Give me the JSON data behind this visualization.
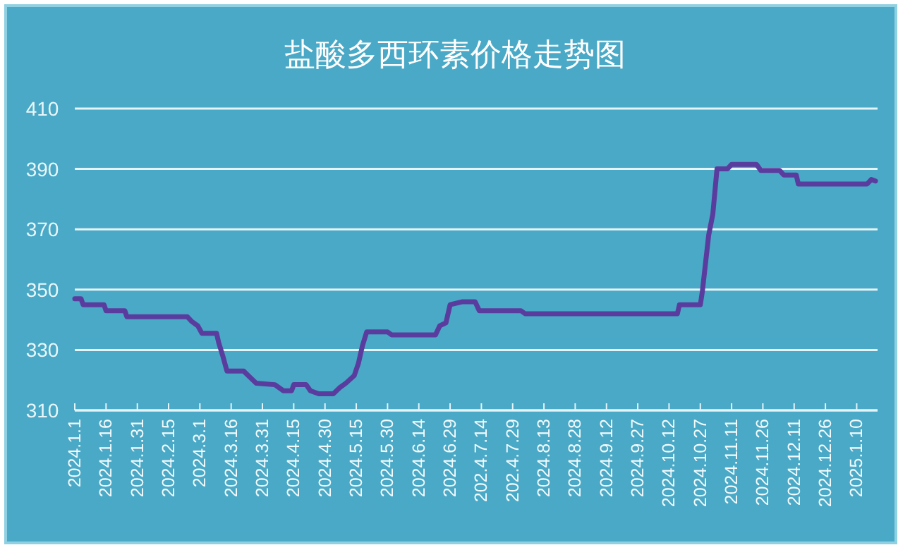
{
  "chart_data": {
    "type": "line",
    "title": "盐酸多西环素价格走势图",
    "series": [
      {
        "color": "#5a3c9e",
        "x": [
          "2024-01-01",
          "2024-01-04",
          "2024-01-05",
          "2024-01-15",
          "2024-01-16",
          "2024-01-25",
          "2024-01-26",
          "2024-02-24",
          "2024-02-26",
          "2024-02-29",
          "2024-03-02",
          "2024-03-09",
          "2024-03-10",
          "2024-03-12",
          "2024-03-14",
          "2024-03-22",
          "2024-03-25",
          "2024-03-28",
          "2024-04-06",
          "2024-04-10",
          "2024-04-14",
          "2024-04-15",
          "2024-04-21",
          "2024-04-23",
          "2024-04-27",
          "2024-05-04",
          "2024-05-07",
          "2024-05-10",
          "2024-05-14",
          "2024-05-16",
          "2024-05-18",
          "2024-05-20",
          "2024-05-30",
          "2024-06-01",
          "2024-06-22",
          "2024-06-24",
          "2024-06-27",
          "2024-06-29",
          "2024-07-05",
          "2024-07-11",
          "2024-07-13",
          "2024-08-02",
          "2024-08-04",
          "2024-10-16",
          "2024-10-17",
          "2024-10-27",
          "2024-10-28",
          "2024-10-31",
          "2024-11-02",
          "2024-11-04",
          "2024-11-09",
          "2024-11-11",
          "2024-11-23",
          "2024-11-25",
          "2024-12-04",
          "2024-12-06",
          "2024-12-12",
          "2024-12-13",
          "2025-01-15",
          "2025-01-17",
          "2025-01-19"
        ],
        "values": [
          347,
          347,
          345,
          345,
          343,
          343,
          341,
          341,
          339.5,
          338,
          335.5,
          335.5,
          332.5,
          328,
          323,
          323,
          321,
          319,
          318.5,
          316.5,
          316.5,
          318.5,
          318.5,
          316.5,
          315.5,
          315.5,
          317.5,
          319,
          321.5,
          325.5,
          331.5,
          336,
          336,
          335,
          335,
          338,
          339,
          345,
          346,
          346,
          343,
          343,
          342,
          342,
          345,
          345,
          349.5,
          368,
          375,
          390,
          390,
          391.5,
          391.5,
          389.5,
          389.5,
          388,
          388,
          385,
          385,
          386.5,
          386
        ]
      }
    ],
    "ylim": [
      310,
      410
    ],
    "yticks": [
      310,
      330,
      350,
      370,
      390,
      410
    ],
    "xlim": [
      "2024-01-01",
      "2025-01-20"
    ],
    "xticks": [
      {
        "value": "2024-01-01",
        "label": "2024.1.1"
      },
      {
        "value": "2024-01-16",
        "label": "2024.1.16"
      },
      {
        "value": "2024-01-31",
        "label": "2024.1.31"
      },
      {
        "value": "2024-02-15",
        "label": "2024.2.15"
      },
      {
        "value": "2024-03-01",
        "label": "2024.3.1"
      },
      {
        "value": "2024-03-16",
        "label": "2024.3.16"
      },
      {
        "value": "2024-03-31",
        "label": "2024.3.31"
      },
      {
        "value": "2024-04-15",
        "label": "2024.4.15"
      },
      {
        "value": "2024-04-30",
        "label": "2024.4.30"
      },
      {
        "value": "2024-05-15",
        "label": "2024.5.15"
      },
      {
        "value": "2024-05-30",
        "label": "2024.5.30"
      },
      {
        "value": "2024-06-14",
        "label": "2024.6.14"
      },
      {
        "value": "2024-06-29",
        "label": "2024.6.29"
      },
      {
        "value": "2024-07-14",
        "label": "202.4.7.14"
      },
      {
        "value": "2024-07-29",
        "label": "202.4.7.29"
      },
      {
        "value": "2024-08-13",
        "label": "2024.8.13"
      },
      {
        "value": "2024-08-28",
        "label": "2024.8.28"
      },
      {
        "value": "2024-09-12",
        "label": "2024.9.12"
      },
      {
        "value": "2024-09-27",
        "label": "2024.9.27"
      },
      {
        "value": "2024-10-12",
        "label": "2024.10.12"
      },
      {
        "value": "2024-10-27",
        "label": "2024.10.27"
      },
      {
        "value": "2024-11-11",
        "label": "2024.11.11"
      },
      {
        "value": "2024-11-26",
        "label": "2024.11.26"
      },
      {
        "value": "2024-12-11",
        "label": "2024.12.11"
      },
      {
        "value": "2024-12-26",
        "label": "2024.12.26"
      },
      {
        "value": "2025-01-10",
        "label": "2025.1.10"
      }
    ],
    "grid": "y",
    "line_style": "solid"
  }
}
